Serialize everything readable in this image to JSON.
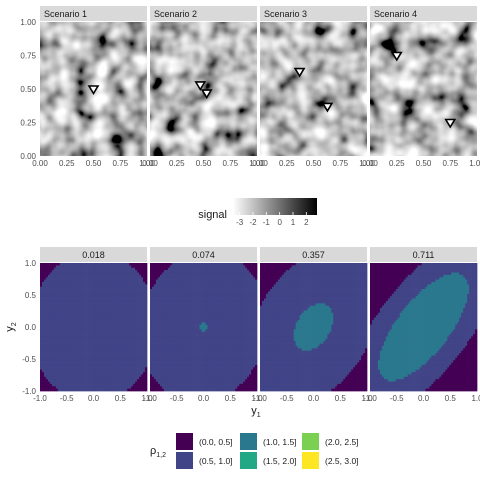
{
  "chart_data": [
    {
      "type": "heatmap",
      "panels": [
        "Scenario 1",
        "Scenario 2",
        "Scenario 3",
        "Scenario 4"
      ],
      "xlim": [
        0,
        1
      ],
      "ylim": [
        0,
        1
      ],
      "xticks": [
        "0.00",
        "0.25",
        "0.50",
        "0.75",
        "1.00"
      ],
      "yticks": [
        "0.00",
        "0.25",
        "0.50",
        "0.75",
        "1.00"
      ],
      "xlabel": "",
      "ylabel": "",
      "legend": {
        "title": "signal",
        "ticks": [
          "-3",
          "-2",
          "-1",
          "0",
          "1",
          "2"
        ],
        "range": [
          -3.5,
          2.8
        ],
        "placement": "center",
        "colormap": "grayscale"
      },
      "markers": [
        {
          "panel": "Scenario 1",
          "points": [
            [
              0.5,
              0.5
            ]
          ]
        },
        {
          "panel": "Scenario 2",
          "points": [
            [
              0.47,
              0.53
            ],
            [
              0.53,
              0.47
            ]
          ]
        },
        {
          "panel": "Scenario 3",
          "points": [
            [
              0.37,
              0.63
            ],
            [
              0.63,
              0.37
            ]
          ]
        },
        {
          "panel": "Scenario 4",
          "points": [
            [
              0.25,
              0.75
            ],
            [
              0.75,
              0.25
            ]
          ]
        }
      ]
    },
    {
      "type": "heatmap",
      "panels": [
        "0.018",
        "0.074",
        "0.357",
        "0.711"
      ],
      "xlim": [
        -1,
        1
      ],
      "ylim": [
        -1,
        1
      ],
      "xticks": [
        "-1.0",
        "-0.5",
        "0.0",
        "0.5",
        "1.0"
      ],
      "yticks": [
        "-1.0",
        "-0.5",
        "0.0",
        "0.5",
        "1.0"
      ],
      "xlabel_main": "y",
      "xlabel_sub": "1",
      "ylabel_main": "y",
      "ylabel_sub": "2",
      "legend": {
        "title_main": "ρ",
        "title_sub": "1,2",
        "placement": "bottom",
        "items": [
          {
            "label": "(0.0, 0.5]",
            "color": "#440154"
          },
          {
            "label": "(0.5, 1.0]",
            "color": "#414487"
          },
          {
            "label": "(1.0, 1.5]",
            "color": "#2a788e"
          },
          {
            "label": "(1.5, 2.0]",
            "color": "#22a884"
          },
          {
            "label": "(2.0, 2.5]",
            "color": "#7ad151"
          },
          {
            "label": "(2.5, 3.0]",
            "color": "#fde725"
          }
        ]
      },
      "contour_levels": [
        0.5,
        1.0,
        1.5,
        2.0,
        2.5
      ]
    }
  ],
  "colors": {
    "strip": "#d9d9d9",
    "tick_text": "#4d4d4d",
    "marker_fill": "#ffffff",
    "marker_edge": "#000000"
  }
}
